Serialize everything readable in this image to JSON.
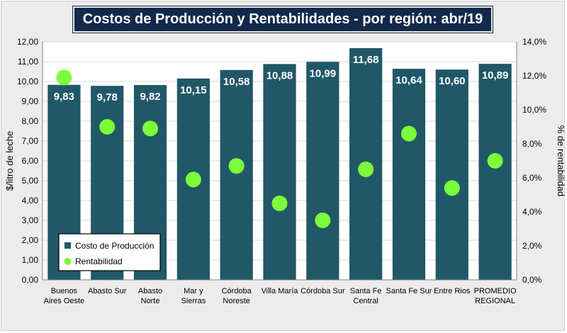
{
  "chart_data": {
    "type": "bar",
    "title": "Costos de Producción y Rentabilidades - por región: abr/19",
    "ylabel": "$/litro de leche",
    "y2label": "% de rentabilidad",
    "ylim": [
      0,
      12
    ],
    "y2lim": [
      0,
      14
    ],
    "yticks": [
      "0,00",
      "1,00",
      "2,00",
      "3,00",
      "4,00",
      "5,00",
      "6,00",
      "7,00",
      "8,00",
      "9,00",
      "10,00",
      "11,00",
      "12,00"
    ],
    "y2ticks": [
      "0,0%",
      "2,0%",
      "4,0%",
      "6,0%",
      "8,0%",
      "10,0%",
      "12,0%",
      "14,0%"
    ],
    "grid": true,
    "legend_position": "bottom-left",
    "categories": [
      [
        "Buenos",
        "Aires Oeste"
      ],
      [
        "Abasto Sur"
      ],
      [
        "Abasto",
        "Norte"
      ],
      [
        "Mar y",
        "Sierras"
      ],
      [
        "Córdoba",
        "Noreste"
      ],
      [
        "Villa María"
      ],
      [
        "Córdoba Sur"
      ],
      [
        "Santa Fe",
        "Central"
      ],
      [
        "Santa Fe Sur"
      ],
      [
        "Entre Rios"
      ],
      [
        "PROMEDIO",
        "REGIONAL"
      ]
    ],
    "series": [
      {
        "name": "Costo de Producción",
        "kind": "bar",
        "axis": "left",
        "color": "#215867",
        "values": [
          9.83,
          9.78,
          9.82,
          10.15,
          10.58,
          10.88,
          10.99,
          11.68,
          10.64,
          10.6,
          10.89
        ],
        "labels": [
          "9,83",
          "9,78",
          "9,82",
          "10,15",
          "10,58",
          "10,88",
          "10,99",
          "11,68",
          "10,64",
          "10,60",
          "10,89"
        ]
      },
      {
        "name": "Rentabilidad",
        "kind": "scatter",
        "axis": "right",
        "color": "#7cfc3b",
        "values": [
          11.9,
          9.0,
          8.9,
          5.9,
          6.7,
          4.5,
          3.5,
          6.5,
          8.6,
          5.4,
          7.0
        ]
      }
    ]
  }
}
